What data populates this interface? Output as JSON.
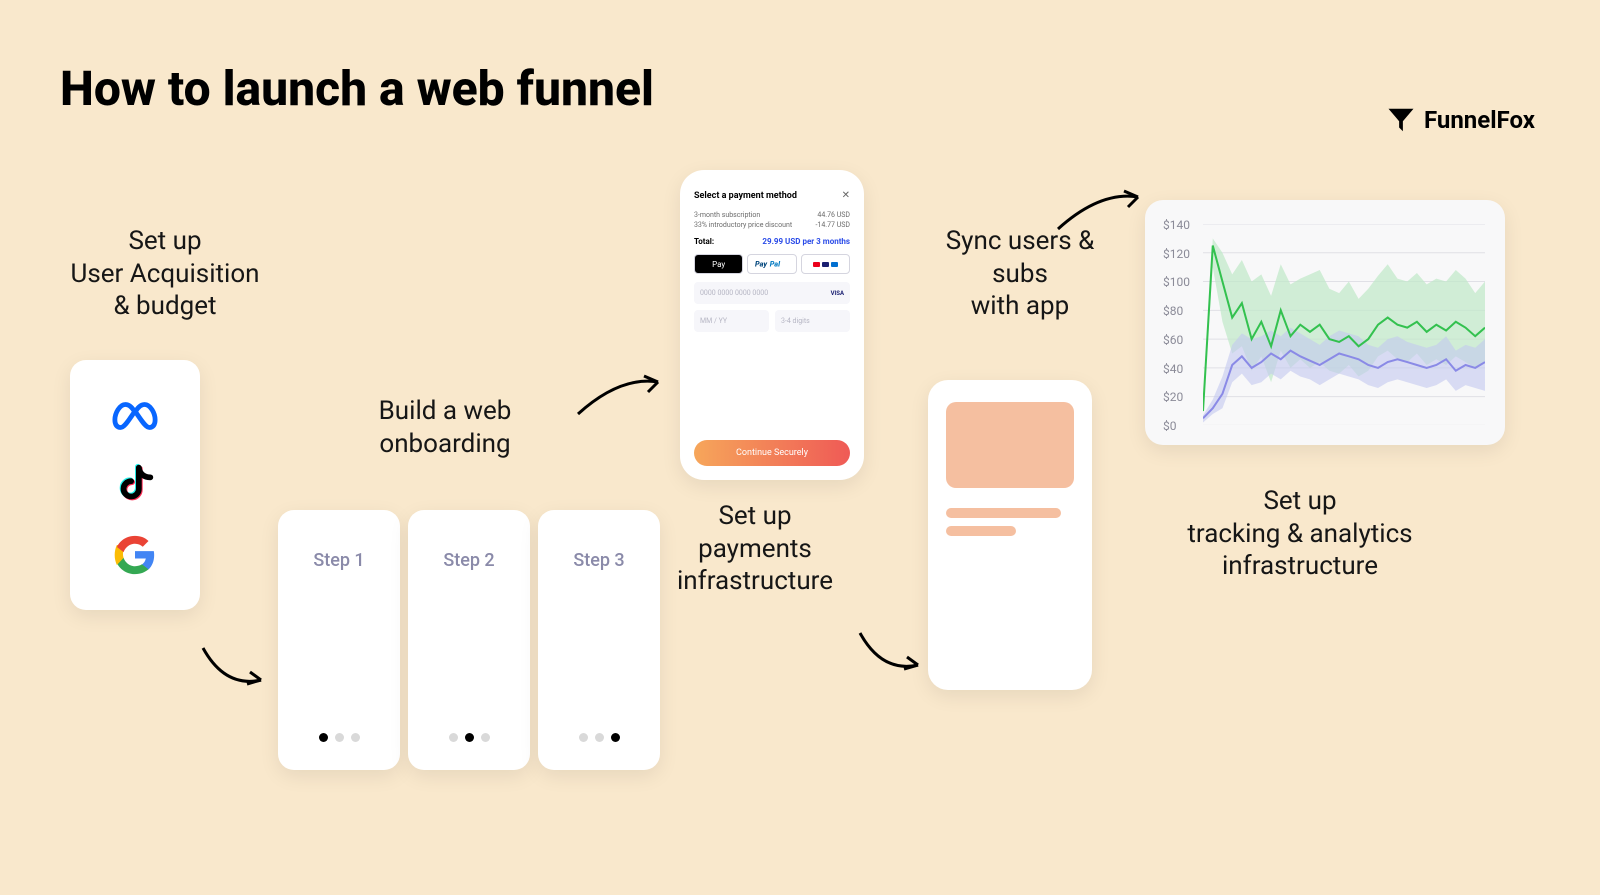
{
  "title": "How to launch a web funnel",
  "brand": "FunnelFox",
  "labels": {
    "ua": "Set up\nUser Acquisition\n& budget",
    "onboarding": "Build a web\nonboarding",
    "payments": "Set up\npayments\ninfrastructure",
    "sync": "Sync users & subs\nwith app",
    "analytics": "Set up\ntracking & analytics\ninfrastructure"
  },
  "steps": [
    "Step 1",
    "Step 2",
    "Step 3"
  ],
  "payment": {
    "title": "Select a payment method",
    "line1_l": "3-month subscription",
    "line1_r": "44.76 USD",
    "line2_l": "33% introductory price discount",
    "line2_r": "-14.77 USD",
    "total_l": "Total:",
    "total_r": "29.99 USD per 3 months",
    "apple": "Pay",
    "paypal": "PayPal",
    "card_ph": "0000  0000  0000  0000",
    "card_brand": "VISA",
    "exp_ph": "MM / YY",
    "cvc_ph": "3-4 digits",
    "cta": "Continue Securely"
  },
  "analytics": {
    "ylim": [
      0,
      140
    ],
    "yticks": [
      "$140",
      "$120",
      "$100",
      "$80",
      "$60",
      "$40",
      "$20",
      "$0"
    ],
    "colors": {
      "series_a_line": "#33c14f",
      "series_a_fill": "#bfe8c7",
      "series_b_line": "#8a8ae6",
      "series_b_fill": "#c3c8ef",
      "grid": "#e0e0e6",
      "bg": "#f8f8f9"
    },
    "series_a_line": [
      10,
      125,
      100,
      75,
      85,
      60,
      72,
      55,
      80,
      62,
      70,
      65,
      70,
      60,
      58,
      62,
      55,
      60,
      70,
      75,
      70,
      68,
      72,
      65,
      70,
      66,
      72,
      68,
      62,
      68
    ],
    "series_a_upper": [
      12,
      130,
      120,
      105,
      115,
      100,
      105,
      90,
      112,
      98,
      102,
      105,
      108,
      95,
      92,
      100,
      88,
      95,
      104,
      112,
      102,
      100,
      106,
      98,
      102,
      100,
      108,
      102,
      92,
      100
    ],
    "series_a_lower": [
      8,
      110,
      72,
      50,
      55,
      38,
      48,
      30,
      52,
      40,
      46,
      40,
      44,
      38,
      36,
      42,
      34,
      38,
      48,
      52,
      46,
      44,
      50,
      42,
      46,
      42,
      48,
      44,
      40,
      44
    ],
    "series_b_line": [
      5,
      12,
      22,
      42,
      48,
      40,
      44,
      50,
      46,
      52,
      48,
      45,
      42,
      46,
      50,
      48,
      46,
      42,
      40,
      44,
      46,
      44,
      42,
      40,
      42,
      46,
      38,
      42,
      40,
      44
    ],
    "series_b_upper": [
      7,
      18,
      34,
      56,
      64,
      60,
      62,
      66,
      62,
      68,
      64,
      60,
      56,
      62,
      66,
      64,
      62,
      56,
      54,
      60,
      62,
      58,
      56,
      54,
      56,
      62,
      52,
      56,
      54,
      60
    ],
    "series_b_lower": [
      2,
      8,
      12,
      30,
      36,
      28,
      30,
      36,
      32,
      38,
      34,
      32,
      28,
      32,
      36,
      34,
      32,
      28,
      26,
      30,
      32,
      30,
      28,
      26,
      28,
      32,
      24,
      28,
      26,
      24
    ]
  },
  "colors": {
    "bg": "#f9e8cc",
    "card_bg": "#ffffff",
    "step_text": "#8a8aa9",
    "sync_block": "#f5bfa0",
    "cta_a": "#f6a65a",
    "cta_b": "#ef5a56",
    "meta": "#0866ff",
    "google": {
      "r": "#ea4335",
      "y": "#fbbc05",
      "g": "#34a853",
      "b": "#4285f4"
    },
    "tiktok_a": "#25f4ee",
    "tiktok_b": "#fe2c55",
    "paypal_a": "#00457c",
    "paypal_b": "#0079c1"
  }
}
